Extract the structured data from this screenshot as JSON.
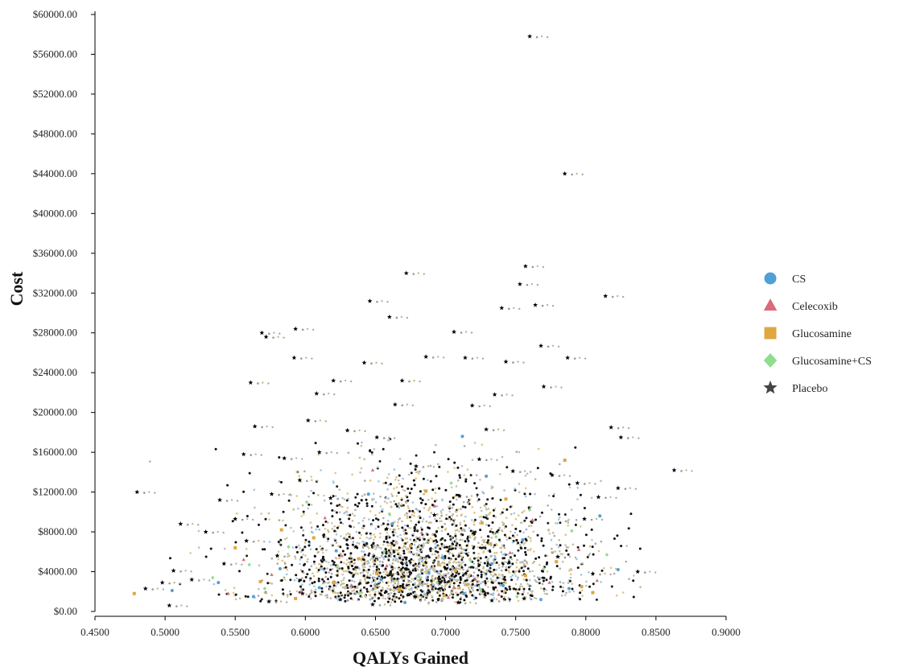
{
  "chart_data": {
    "type": "scatter",
    "title": "",
    "xlabel": "QALYs Gained",
    "ylabel": "Cost",
    "xlim": [
      0.45,
      0.9
    ],
    "ylim": [
      0,
      60000
    ],
    "x_ticks": [
      "0.4500",
      "0.5000",
      "0.5500",
      "0.6000",
      "0.6500",
      "0.7000",
      "0.7500",
      "0.8000",
      "0.8500",
      "0.9000"
    ],
    "x_tick_values": [
      0.45,
      0.5,
      0.55,
      0.6,
      0.65,
      0.7,
      0.75,
      0.8,
      0.85,
      0.9
    ],
    "y_ticks": [
      "$0.00",
      "$4000.00",
      "$8000.00",
      "$12000.00",
      "$16000.00",
      "$20000.00",
      "$24000.00",
      "$28000.00",
      "$32000.00",
      "$36000.00",
      "$40000.00",
      "$44000.00",
      "$48000.00",
      "$52000.00",
      "$56000.00",
      "$60000.00"
    ],
    "y_tick_values": [
      0,
      4000,
      8000,
      12000,
      16000,
      20000,
      24000,
      28000,
      32000,
      36000,
      40000,
      44000,
      48000,
      52000,
      56000,
      60000
    ],
    "grid": false,
    "legend_position": "right",
    "series": [
      {
        "name": "CS",
        "color": "#4f9fd8",
        "marker": "circle",
        "points": [
          [
            0.505,
            2100
          ],
          [
            0.654,
            3200
          ],
          [
            0.713,
            1800
          ],
          [
            0.698,
            5400
          ],
          [
            0.741,
            2600
          ],
          [
            0.582,
            4300
          ],
          [
            0.671,
            900
          ],
          [
            0.788,
            2300
          ],
          [
            0.622,
            6100
          ],
          [
            0.755,
            7200
          ],
          [
            0.645,
            11800
          ],
          [
            0.712,
            17600
          ],
          [
            0.81,
            9600
          ],
          [
            0.563,
            1500
          ],
          [
            0.688,
            3900
          ],
          [
            0.733,
            4800
          ],
          [
            0.61,
            2400
          ],
          [
            0.768,
            1200
          ],
          [
            0.823,
            4200
          ],
          [
            0.662,
            8800
          ],
          [
            0.538,
            2900
          ],
          [
            0.729,
            13600
          ]
        ]
      },
      {
        "name": "Celecoxib",
        "color": "#d96b7b",
        "marker": "triangle",
        "points": [
          [
            0.633,
            2600
          ],
          [
            0.702,
            1400
          ],
          [
            0.576,
            3700
          ],
          [
            0.746,
            5900
          ],
          [
            0.683,
            7900
          ],
          [
            0.597,
            2000
          ],
          [
            0.721,
            3300
          ],
          [
            0.658,
            4600
          ],
          [
            0.774,
            2900
          ],
          [
            0.614,
            9400
          ],
          [
            0.795,
            6200
          ],
          [
            0.556,
            5200
          ],
          [
            0.692,
            10600
          ],
          [
            0.738,
            1700
          ],
          [
            0.648,
            14200
          ],
          [
            0.808,
            3100
          ],
          [
            0.706,
            2400
          ],
          [
            0.626,
            5600
          ],
          [
            0.545,
            1800
          ],
          [
            0.762,
            9200
          ]
        ]
      },
      {
        "name": "Glucosamine",
        "color": "#e0a640",
        "marker": "square",
        "points": [
          [
            0.478,
            1800
          ],
          [
            0.638,
            5300
          ],
          [
            0.707,
            4100
          ],
          [
            0.593,
            1300
          ],
          [
            0.732,
            6800
          ],
          [
            0.667,
            2200
          ],
          [
            0.757,
            3600
          ],
          [
            0.606,
            7400
          ],
          [
            0.686,
            12100
          ],
          [
            0.779,
            5000
          ],
          [
            0.568,
            3000
          ],
          [
            0.699,
            1600
          ],
          [
            0.726,
            8900
          ],
          [
            0.651,
            3800
          ],
          [
            0.805,
            1900
          ],
          [
            0.62,
            2900
          ],
          [
            0.743,
            11300
          ],
          [
            0.55,
            6400
          ],
          [
            0.785,
            15200
          ],
          [
            0.675,
            6600
          ],
          [
            0.715,
            2700
          ],
          [
            0.797,
            2500
          ],
          [
            0.583,
            8200
          ],
          [
            0.695,
            4700
          ]
        ]
      },
      {
        "name": "Glucosamine+CS",
        "color": "#8fdd8f",
        "marker": "diamond",
        "points": [
          [
            0.623,
            4400
          ],
          [
            0.694,
            2900
          ],
          [
            0.588,
            6500
          ],
          [
            0.751,
            1500
          ],
          [
            0.66,
            9800
          ],
          [
            0.718,
            5100
          ],
          [
            0.571,
            2300
          ],
          [
            0.77,
            4300
          ],
          [
            0.64,
            1900
          ],
          [
            0.736,
            7500
          ],
          [
            0.681,
            3500
          ],
          [
            0.601,
            11000
          ],
          [
            0.79,
            8100
          ],
          [
            0.56,
            4700
          ],
          [
            0.704,
            12900
          ],
          [
            0.656,
            6000
          ],
          [
            0.725,
            2100
          ],
          [
            0.815,
            5700
          ],
          [
            0.534,
            3400
          ],
          [
            0.76,
            10200
          ]
        ]
      },
      {
        "name": "Placebo",
        "color": "#444444",
        "marker": "star",
        "points": [
          [
            0.48,
            12000
          ],
          [
            0.486,
            2300
          ],
          [
            0.498,
            2900
          ],
          [
            0.503,
            600
          ],
          [
            0.506,
            4100
          ],
          [
            0.511,
            8800
          ],
          [
            0.519,
            3200
          ],
          [
            0.529,
            8000
          ],
          [
            0.539,
            11200
          ],
          [
            0.542,
            4800
          ],
          [
            0.55,
            9300
          ],
          [
            0.556,
            15800
          ],
          [
            0.558,
            7100
          ],
          [
            0.561,
            23000
          ],
          [
            0.564,
            18600
          ],
          [
            0.569,
            28000
          ],
          [
            0.572,
            27600
          ],
          [
            0.576,
            11800
          ],
          [
            0.58,
            5600
          ],
          [
            0.585,
            15400
          ],
          [
            0.592,
            25500
          ],
          [
            0.593,
            28400
          ],
          [
            0.596,
            13200
          ],
          [
            0.602,
            19200
          ],
          [
            0.608,
            21900
          ],
          [
            0.61,
            16000
          ],
          [
            0.618,
            11400
          ],
          [
            0.62,
            23200
          ],
          [
            0.63,
            18200
          ],
          [
            0.636,
            6500
          ],
          [
            0.642,
            25000
          ],
          [
            0.646,
            31200
          ],
          [
            0.651,
            17500
          ],
          [
            0.658,
            8300
          ],
          [
            0.66,
            29600
          ],
          [
            0.664,
            20800
          ],
          [
            0.669,
            23200
          ],
          [
            0.672,
            34000
          ],
          [
            0.679,
            14600
          ],
          [
            0.686,
            25600
          ],
          [
            0.692,
            9700
          ],
          [
            0.7,
            4300
          ],
          [
            0.706,
            28100
          ],
          [
            0.71,
            11600
          ],
          [
            0.714,
            25500
          ],
          [
            0.719,
            20700
          ],
          [
            0.724,
            15300
          ],
          [
            0.729,
            18300
          ],
          [
            0.735,
            21800
          ],
          [
            0.74,
            30500
          ],
          [
            0.743,
            25100
          ],
          [
            0.748,
            14100
          ],
          [
            0.753,
            32900
          ],
          [
            0.757,
            34700
          ],
          [
            0.76,
            57800
          ],
          [
            0.764,
            30800
          ],
          [
            0.768,
            26700
          ],
          [
            0.77,
            22600
          ],
          [
            0.776,
            13700
          ],
          [
            0.78,
            5500
          ],
          [
            0.785,
            44000
          ],
          [
            0.787,
            25500
          ],
          [
            0.794,
            12900
          ],
          [
            0.799,
            9300
          ],
          [
            0.805,
            3800
          ],
          [
            0.809,
            11500
          ],
          [
            0.814,
            31700
          ],
          [
            0.818,
            18500
          ],
          [
            0.823,
            12400
          ],
          [
            0.825,
            17500
          ],
          [
            0.837,
            4000
          ],
          [
            0.863,
            14200
          ],
          [
            0.625,
            1200
          ],
          [
            0.648,
            700
          ],
          [
            0.678,
            1500
          ],
          [
            0.709,
            900
          ],
          [
            0.733,
            1100
          ],
          [
            0.756,
            1300
          ],
          [
            0.598,
            1800
          ],
          [
            0.574,
            1000
          ]
        ]
      }
    ]
  }
}
